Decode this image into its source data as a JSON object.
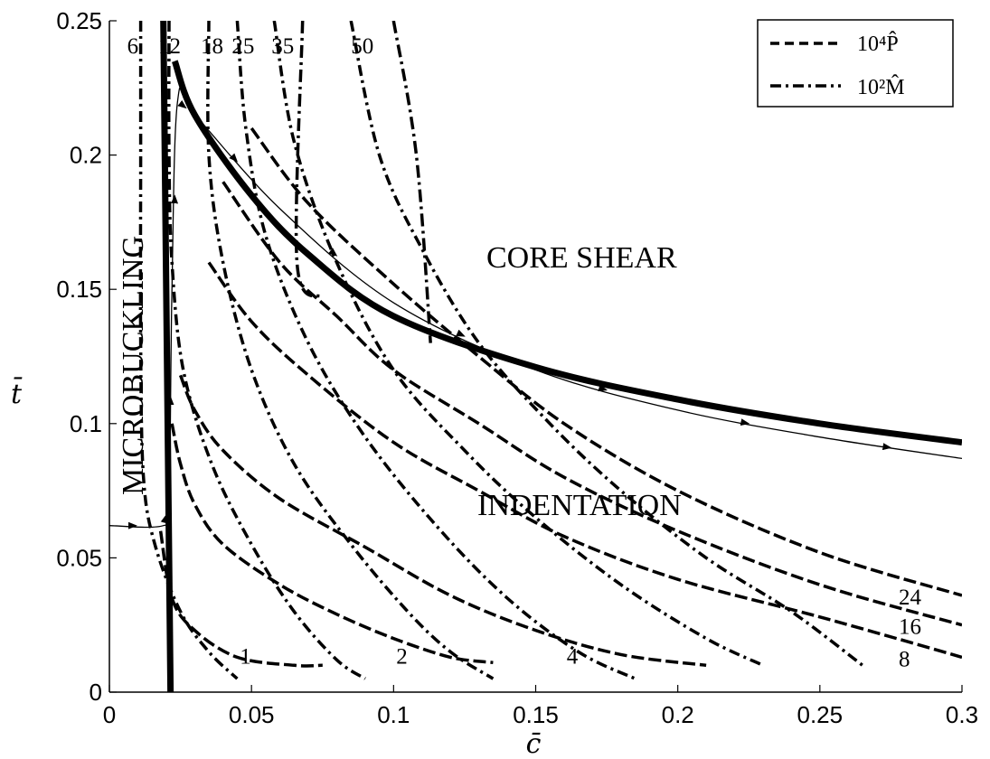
{
  "chart_data": {
    "type": "line",
    "xlabel": "c̄",
    "ylabel": "t̄",
    "xlim": [
      0,
      0.3
    ],
    "ylim": [
      0,
      0.25
    ],
    "xticks": [
      "0",
      "0.05",
      "0.1",
      "0.15",
      "0.2",
      "0.25",
      "0.3"
    ],
    "yticks": [
      "0",
      "0.05",
      "0.1",
      "0.15",
      "0.2",
      "0.25"
    ],
    "grid": false,
    "legend_position": "top-right",
    "legend": [
      {
        "label": "10⁴P̂",
        "style": "dashed"
      },
      {
        "label": "10²M̂",
        "style": "dash-dot"
      }
    ],
    "regions": [
      "MICROBUCKLING",
      "CORE SHEAR",
      "INDENTATION"
    ],
    "boundaries": [
      {
        "name": "microbuckling",
        "points": [
          [
            0.019,
            0.25
          ],
          [
            0.0215,
            0.0
          ]
        ]
      },
      {
        "name": "core-shear",
        "points": [
          [
            0.023,
            0.235
          ],
          [
            0.03,
            0.215
          ],
          [
            0.05,
            0.185
          ],
          [
            0.07,
            0.163
          ],
          [
            0.1,
            0.14
          ],
          [
            0.15,
            0.121
          ],
          [
            0.2,
            0.109
          ],
          [
            0.25,
            0.1
          ],
          [
            0.3,
            0.093
          ]
        ]
      }
    ],
    "load_curves": [
      {
        "name": "10⁴P̂",
        "value": "1",
        "points": [
          [
            0.018,
            0.06
          ],
          [
            0.022,
            0.035
          ],
          [
            0.03,
            0.023
          ],
          [
            0.045,
            0.013
          ],
          [
            0.065,
            0.01
          ],
          [
            0.075,
            0.01
          ]
        ]
      },
      {
        "name": "10⁴P̂",
        "value": "2",
        "points": [
          [
            0.022,
            0.1
          ],
          [
            0.025,
            0.085
          ],
          [
            0.03,
            0.07
          ],
          [
            0.04,
            0.055
          ],
          [
            0.06,
            0.04
          ],
          [
            0.08,
            0.029
          ],
          [
            0.1,
            0.02
          ],
          [
            0.12,
            0.013
          ],
          [
            0.135,
            0.011
          ]
        ]
      },
      {
        "name": "10⁴P̂",
        "value": "4",
        "points": [
          [
            0.025,
            0.118
          ],
          [
            0.03,
            0.105
          ],
          [
            0.04,
            0.09
          ],
          [
            0.06,
            0.072
          ],
          [
            0.09,
            0.054
          ],
          [
            0.12,
            0.036
          ],
          [
            0.15,
            0.023
          ],
          [
            0.18,
            0.014
          ],
          [
            0.21,
            0.01
          ]
        ]
      },
      {
        "name": "10⁴P̂",
        "value": "8",
        "points": [
          [
            0.035,
            0.16
          ],
          [
            0.05,
            0.138
          ],
          [
            0.07,
            0.118
          ],
          [
            0.1,
            0.093
          ],
          [
            0.13,
            0.075
          ],
          [
            0.16,
            0.058
          ],
          [
            0.2,
            0.042
          ],
          [
            0.25,
            0.028
          ],
          [
            0.3,
            0.013
          ]
        ]
      },
      {
        "name": "10⁴P̂",
        "value": "16",
        "points": [
          [
            0.04,
            0.19
          ],
          [
            0.06,
            0.16
          ],
          [
            0.08,
            0.14
          ],
          [
            0.1,
            0.12
          ],
          [
            0.13,
            0.1
          ],
          [
            0.16,
            0.08
          ],
          [
            0.2,
            0.06
          ],
          [
            0.25,
            0.04
          ],
          [
            0.3,
            0.025
          ]
        ]
      },
      {
        "name": "10⁴P̂",
        "value": "24",
        "points": [
          [
            0.05,
            0.21
          ],
          [
            0.07,
            0.182
          ],
          [
            0.1,
            0.152
          ],
          [
            0.13,
            0.125
          ],
          [
            0.16,
            0.1
          ],
          [
            0.2,
            0.075
          ],
          [
            0.25,
            0.052
          ],
          [
            0.3,
            0.036
          ]
        ]
      }
    ],
    "moment_curves": [
      {
        "name": "10²M̂",
        "value": "6",
        "points": [
          [
            0.011,
            0.25
          ],
          [
            0.011,
            0.2
          ],
          [
            0.011,
            0.13
          ],
          [
            0.012,
            0.08
          ],
          [
            0.016,
            0.055
          ],
          [
            0.025,
            0.03
          ],
          [
            0.035,
            0.015
          ],
          [
            0.045,
            0.005
          ]
        ]
      },
      {
        "name": "10²M̂",
        "value": "12",
        "points": [
          [
            0.021,
            0.25
          ],
          [
            0.021,
            0.2
          ],
          [
            0.022,
            0.16
          ],
          [
            0.026,
            0.12
          ],
          [
            0.036,
            0.085
          ],
          [
            0.05,
            0.055
          ],
          [
            0.065,
            0.03
          ],
          [
            0.08,
            0.012
          ],
          [
            0.09,
            0.005
          ]
        ]
      },
      {
        "name": "10²M̂",
        "value": "18",
        "points": [
          [
            0.035,
            0.25
          ],
          [
            0.035,
            0.2
          ],
          [
            0.04,
            0.16
          ],
          [
            0.05,
            0.12
          ],
          [
            0.065,
            0.085
          ],
          [
            0.085,
            0.055
          ],
          [
            0.105,
            0.03
          ],
          [
            0.12,
            0.015
          ],
          [
            0.135,
            0.005
          ]
        ]
      },
      {
        "name": "10²M̂",
        "value": "25",
        "points": [
          [
            0.045,
            0.25
          ],
          [
            0.048,
            0.21
          ],
          [
            0.055,
            0.17
          ],
          [
            0.07,
            0.13
          ],
          [
            0.09,
            0.095
          ],
          [
            0.115,
            0.062
          ],
          [
            0.14,
            0.035
          ],
          [
            0.165,
            0.015
          ],
          [
            0.185,
            0.005
          ]
        ]
      },
      {
        "name": "10²M̂",
        "value": "35",
        "points": [
          [
            0.058,
            0.25
          ],
          [
            0.065,
            0.205
          ],
          [
            0.08,
            0.16
          ],
          [
            0.1,
            0.12
          ],
          [
            0.125,
            0.09
          ],
          [
            0.15,
            0.065
          ],
          [
            0.18,
            0.04
          ],
          [
            0.21,
            0.02
          ],
          [
            0.23,
            0.01
          ]
        ]
      },
      {
        "name": "10²M̂",
        "value": "50",
        "points": [
          [
            0.085,
            0.25
          ],
          [
            0.095,
            0.2
          ],
          [
            0.11,
            0.165
          ],
          [
            0.13,
            0.13
          ],
          [
            0.155,
            0.1
          ],
          [
            0.18,
            0.075
          ],
          [
            0.21,
            0.05
          ],
          [
            0.24,
            0.03
          ],
          [
            0.265,
            0.01
          ]
        ]
      }
    ],
    "vertical_moment_segments": [
      {
        "points": [
          [
            0.068,
            0.25
          ],
          [
            0.066,
            0.16
          ],
          [
            0.075,
            0.147
          ]
        ]
      },
      {
        "points": [
          [
            0.1,
            0.25
          ],
          [
            0.108,
            0.2
          ],
          [
            0.113,
            0.13
          ]
        ]
      }
    ],
    "optimal_paths": [
      {
        "points": [
          [
            0.0,
            0.062
          ],
          [
            0.019,
            0.062
          ],
          [
            0.021,
            0.07
          ],
          [
            0.022,
            0.15
          ],
          [
            0.024,
            0.22
          ],
          [
            0.03,
            0.215
          ],
          [
            0.06,
            0.18
          ],
          [
            0.1,
            0.145
          ],
          [
            0.15,
            0.12
          ],
          [
            0.2,
            0.105
          ],
          [
            0.25,
            0.095
          ],
          [
            0.3,
            0.087
          ]
        ]
      }
    ]
  }
}
